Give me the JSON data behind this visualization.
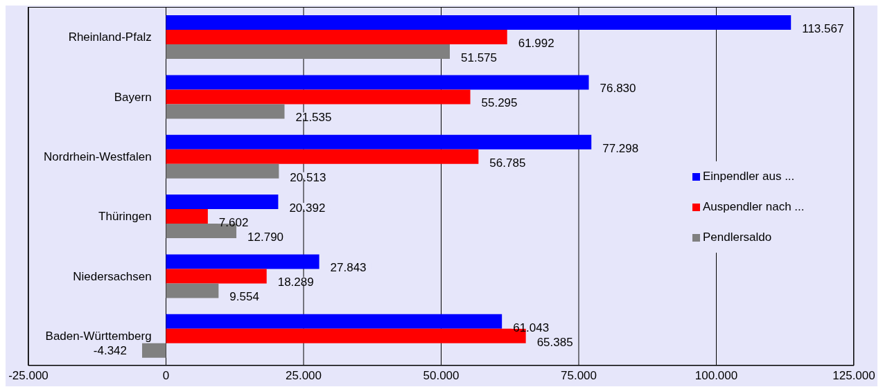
{
  "chart_data": {
    "type": "bar",
    "orientation": "horizontal",
    "categories": [
      "Rheinland-Pfalz",
      "Bayern",
      "Nordrhein-Westfalen",
      "Thüringen",
      "Niedersachsen",
      "Baden-Württemberg"
    ],
    "series": [
      {
        "name": "Einpendler aus ...",
        "color": "#0000ff",
        "values": [
          113567,
          76830,
          77298,
          20392,
          27843,
          61043
        ],
        "value_labels": [
          "113.567",
          "76.830",
          "77.298",
          "20.392",
          "27.843",
          "61.043"
        ]
      },
      {
        "name": "Auspendler nach ...",
        "color": "#ff0000",
        "values": [
          61992,
          55295,
          56785,
          7602,
          18289,
          65385
        ],
        "value_labels": [
          "61.992",
          "55.295",
          "56.785",
          "7.602",
          "18.289",
          "65.385"
        ]
      },
      {
        "name": "Pendlersaldo",
        "color": "#808080",
        "values": [
          51575,
          21535,
          20513,
          12790,
          9554,
          -4342
        ],
        "value_labels": [
          "51.575",
          "21.535",
          "20.513",
          "12.790",
          "9.554",
          "-4.342"
        ]
      }
    ],
    "xlim": [
      -25000,
      125000
    ],
    "xticks": [
      {
        "value": -25000,
        "label": "-25.000"
      },
      0,
      {
        "value": 25000,
        "label": "25.000"
      },
      {
        "value": 50000,
        "label": "50.000"
      },
      {
        "value": 75000,
        "label": "75.000"
      },
      {
        "value": 100000,
        "label": "100.000"
      },
      {
        "value": 125000,
        "label": "125.000"
      }
    ],
    "grid": "x",
    "legend": "right"
  }
}
